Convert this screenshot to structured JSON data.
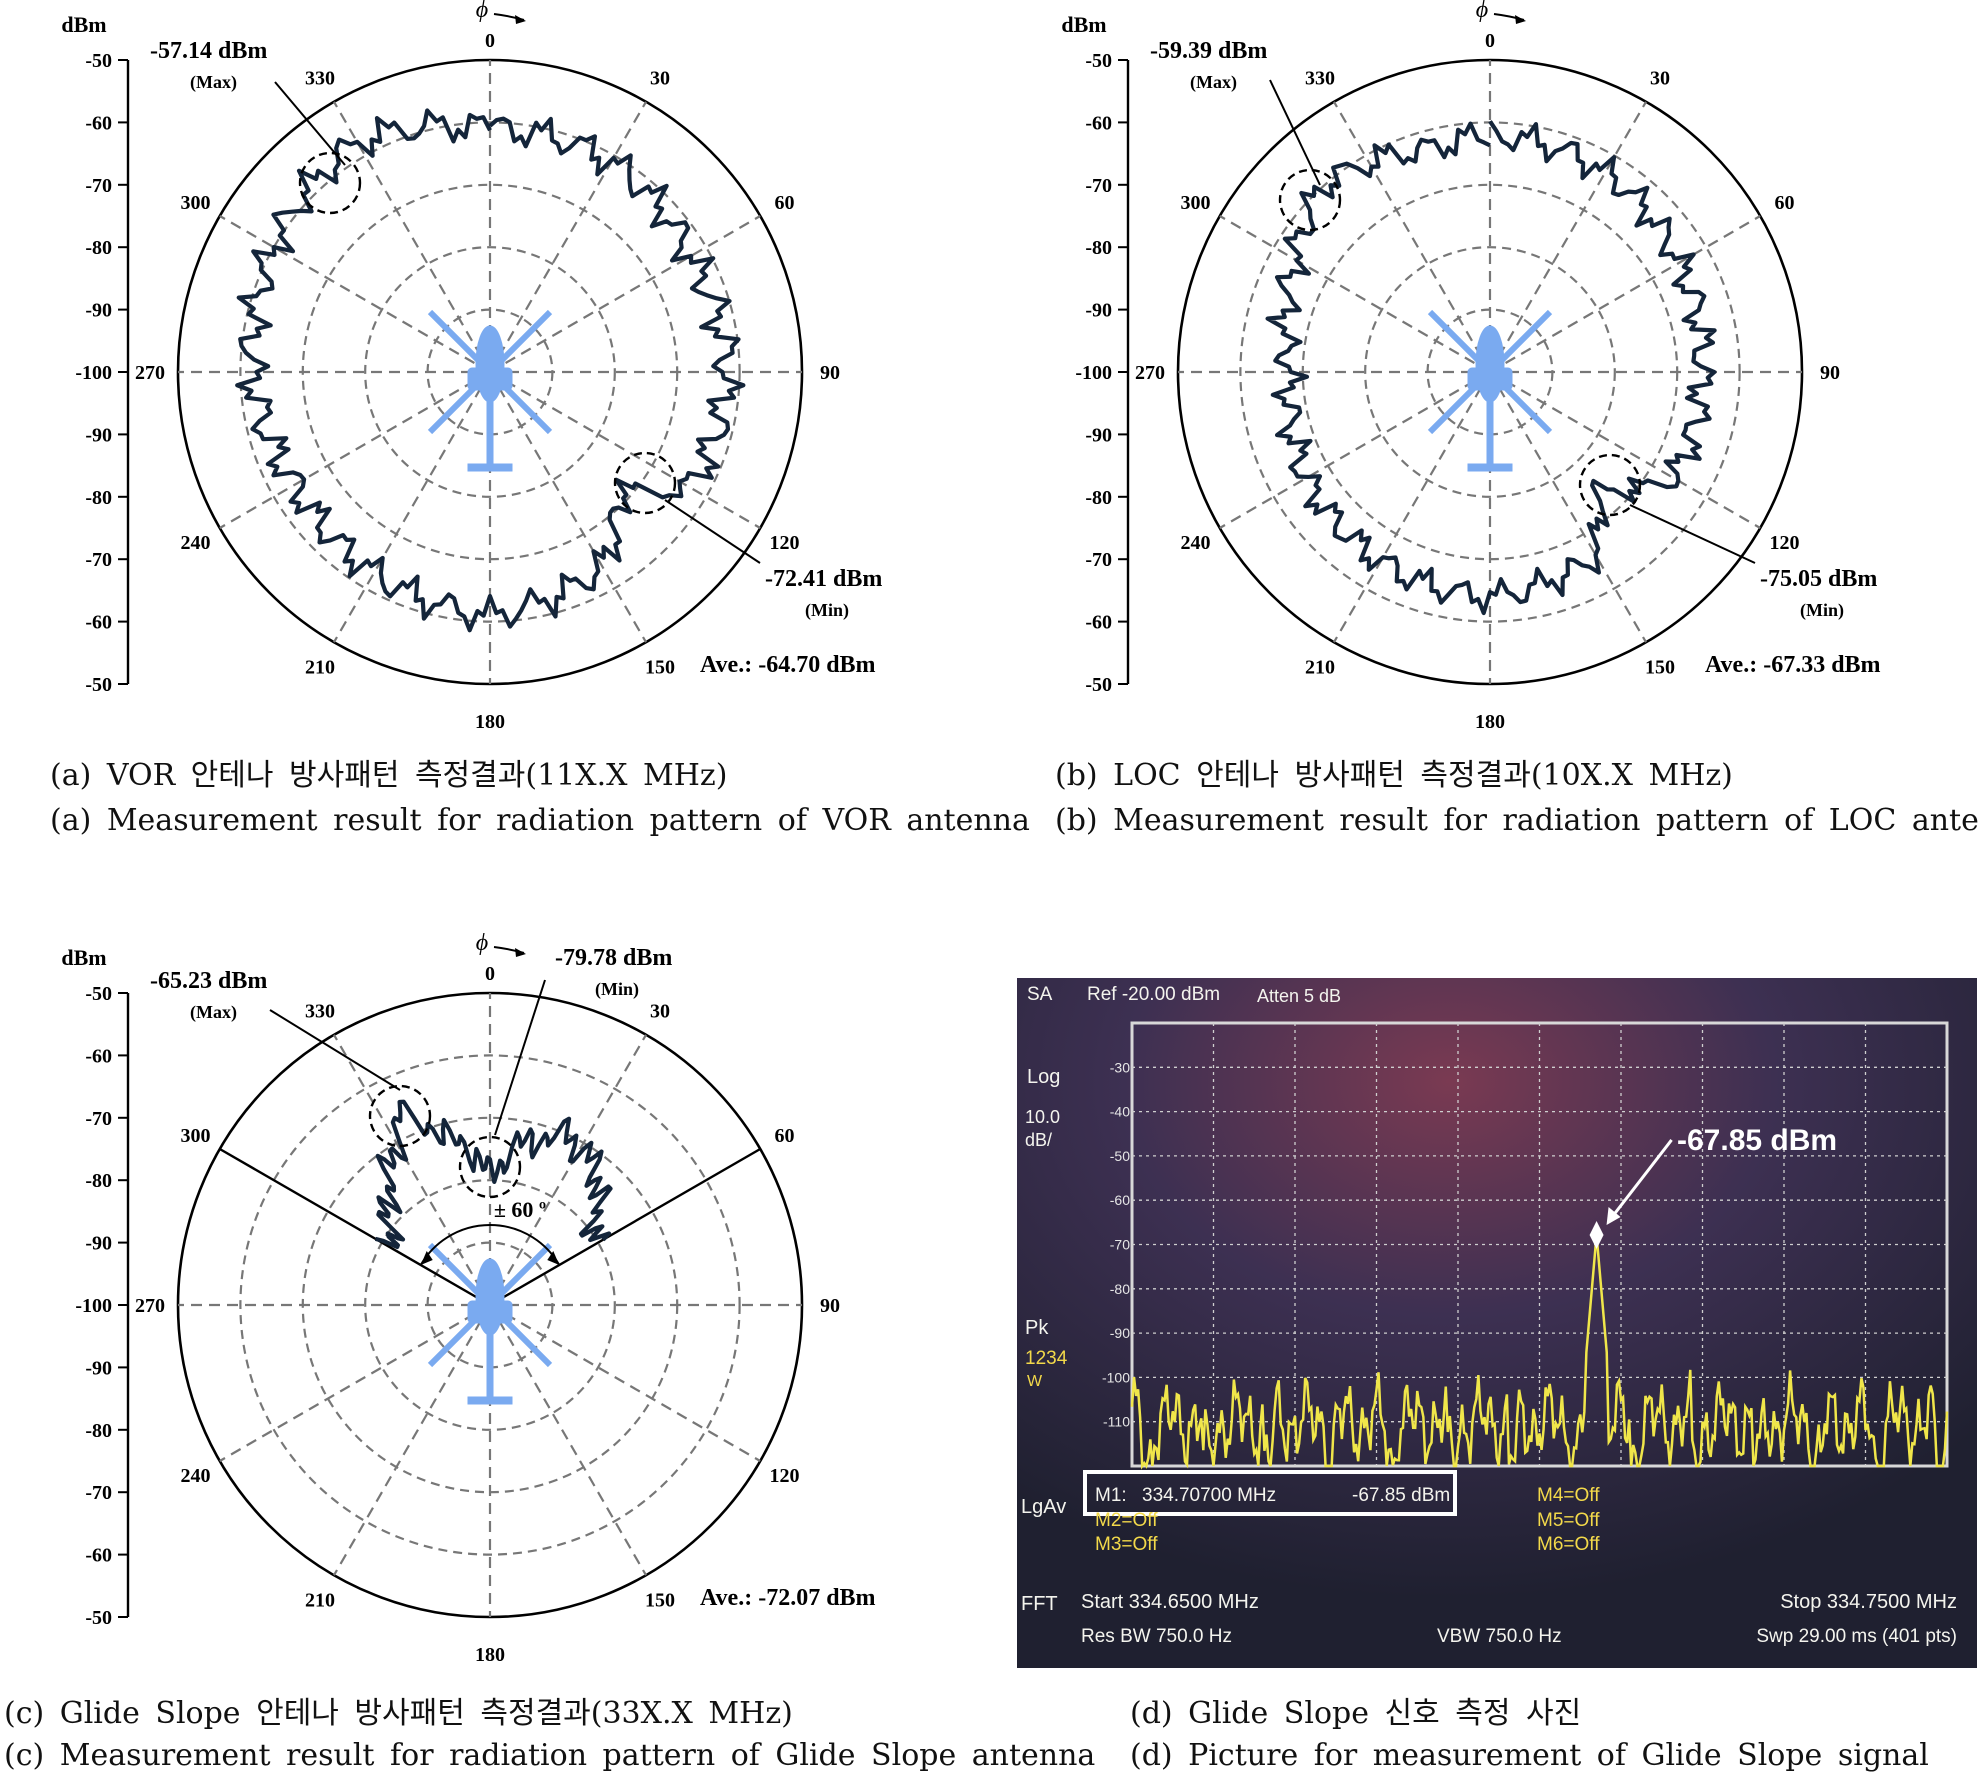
{
  "colors": {
    "pattern": "#14253a",
    "grid": "#777777",
    "heli": "#7aaaf0",
    "sa_trace": "#f0e64a",
    "sa_text": "#f4f4ee"
  },
  "polar_common": {
    "phi_label": "ϕ",
    "unit_label": "dBm",
    "radial_ticks": [
      "-50",
      "-60",
      "-70",
      "-80",
      "-90",
      "-100",
      "-90",
      "-80",
      "-70",
      "-60",
      "-50"
    ],
    "angle_labels": [
      "0",
      "30",
      "60",
      "90",
      "120",
      "150",
      "180",
      "210",
      "240",
      "270",
      "300",
      "330"
    ]
  },
  "chart_data": [
    {
      "type": "polar-line",
      "panel": "a",
      "rlim": [
        -100,
        -50
      ],
      "max_label": "-57.14 dBm",
      "max_tag": "(Max)",
      "max_angle": 330,
      "min_label": "-72.41 dBm",
      "min_tag": "(Min)",
      "min_angle": 132,
      "ave_label": "Ave.: -64.70 dBm",
      "base_curve": [
        [
          0,
          -61
        ],
        [
          30,
          -61
        ],
        [
          60,
          -63
        ],
        [
          90,
          -62
        ],
        [
          120,
          -63
        ],
        [
          132,
          -72
        ],
        [
          150,
          -64
        ],
        [
          180,
          -61
        ],
        [
          210,
          -63
        ],
        [
          240,
          -64
        ],
        [
          270,
          -62
        ],
        [
          300,
          -60
        ],
        [
          330,
          -57.5
        ],
        [
          360,
          -61
        ]
      ],
      "ripple": 2.4
    },
    {
      "type": "polar-line",
      "panel": "b",
      "rlim": [
        -100,
        -50
      ],
      "max_label": "-59.39 dBm",
      "max_tag": "(Max)",
      "max_angle": 318,
      "min_label": "-75.05 dBm",
      "min_tag": "(Min)",
      "min_angle": 138,
      "ave_label": "Ave.: -67.33 dBm",
      "base_curve": [
        [
          0,
          -62
        ],
        [
          30,
          -63
        ],
        [
          60,
          -65
        ],
        [
          90,
          -66
        ],
        [
          120,
          -66
        ],
        [
          138,
          -74.5
        ],
        [
          150,
          -66
        ],
        [
          180,
          -64
        ],
        [
          210,
          -65
        ],
        [
          240,
          -66
        ],
        [
          270,
          -68
        ],
        [
          300,
          -64
        ],
        [
          318,
          -59.8
        ],
        [
          345,
          -63
        ],
        [
          360,
          -62
        ]
      ],
      "ripple": 2.2
    },
    {
      "type": "polar-line",
      "panel": "c",
      "rlim": [
        -100,
        -50
      ],
      "sector": [
        -60,
        60
      ],
      "sector_label": "± 60 º",
      "max_label": "-65.23 dBm",
      "max_tag": "(Max)",
      "max_angle": 335,
      "min_label": "-79.78 dBm",
      "min_tag": "(Min)",
      "min_angle": 0,
      "ave_label": "Ave.: -72.07 dBm",
      "base_curve": [
        [
          -60,
          -82
        ],
        [
          -45,
          -77
        ],
        [
          -30,
          -70
        ],
        [
          -25,
          -66
        ],
        [
          -15,
          -72
        ],
        [
          -5,
          -76
        ],
        [
          0,
          -79.5
        ],
        [
          10,
          -74
        ],
        [
          25,
          -70
        ],
        [
          40,
          -73
        ],
        [
          50,
          -78
        ],
        [
          60,
          -81
        ]
      ],
      "ripple": 2.3
    }
  ],
  "captions": {
    "a_kr": "(a) VOR 안테나 방사패턴 측정결과(11X.X MHz)",
    "a_en": "(a) Measurement result for radiation pattern of VOR antenna",
    "b_kr": "(b) LOC 안테나 방사패턴 측정결과(10X.X MHz)",
    "b_en": "(b) Measurement result for radiation pattern of LOC antenna",
    "c_kr": "(c) Glide Slope 안테나 방사패턴 측정결과(33X.X MHz)",
    "c_en": "(c) Measurement result for radiation pattern of Glide Slope antenna",
    "d_kr": "(d) Glide Slope 신호 측정 사진",
    "d_en": "(d) Picture for measurement of Glide Slope signal"
  },
  "spectrum": {
    "sa": "SA",
    "ref": "Ref -20.00 dBm",
    "atten": "Atten 5 dB",
    "log": "Log",
    "scale1": "10.0",
    "scale2": "dB/",
    "pk": "Pk",
    "trace_num": "1234",
    "w": "W",
    "lgav": "LgAv",
    "fft": "FFT",
    "y_ticks": [
      "-30",
      "-40",
      "-50",
      "-60",
      "-70",
      "-80",
      "-90",
      "-100",
      "-110"
    ],
    "marker_label": "-67.85 dBm",
    "m1_label": "M1:",
    "m1_freq": "334.70700 MHz",
    "m1_val": "-67.85 dBm",
    "m2": "M2=Off",
    "m3": "M3=Off",
    "m4": "M4=Off",
    "m5": "M5=Off",
    "m6": "M6=Off",
    "start": "Start 334.6500 MHz",
    "stop": "Stop 334.7500 MHz",
    "rbw": "Res BW 750.0 Hz",
    "vbw": "VBW 750.0 Hz",
    "swp": "Swp 29.00 ms (401 pts)",
    "peak_db": -67.85,
    "peak_pos": 0.57,
    "noise_floor_db": -110,
    "ref_db": -20
  }
}
